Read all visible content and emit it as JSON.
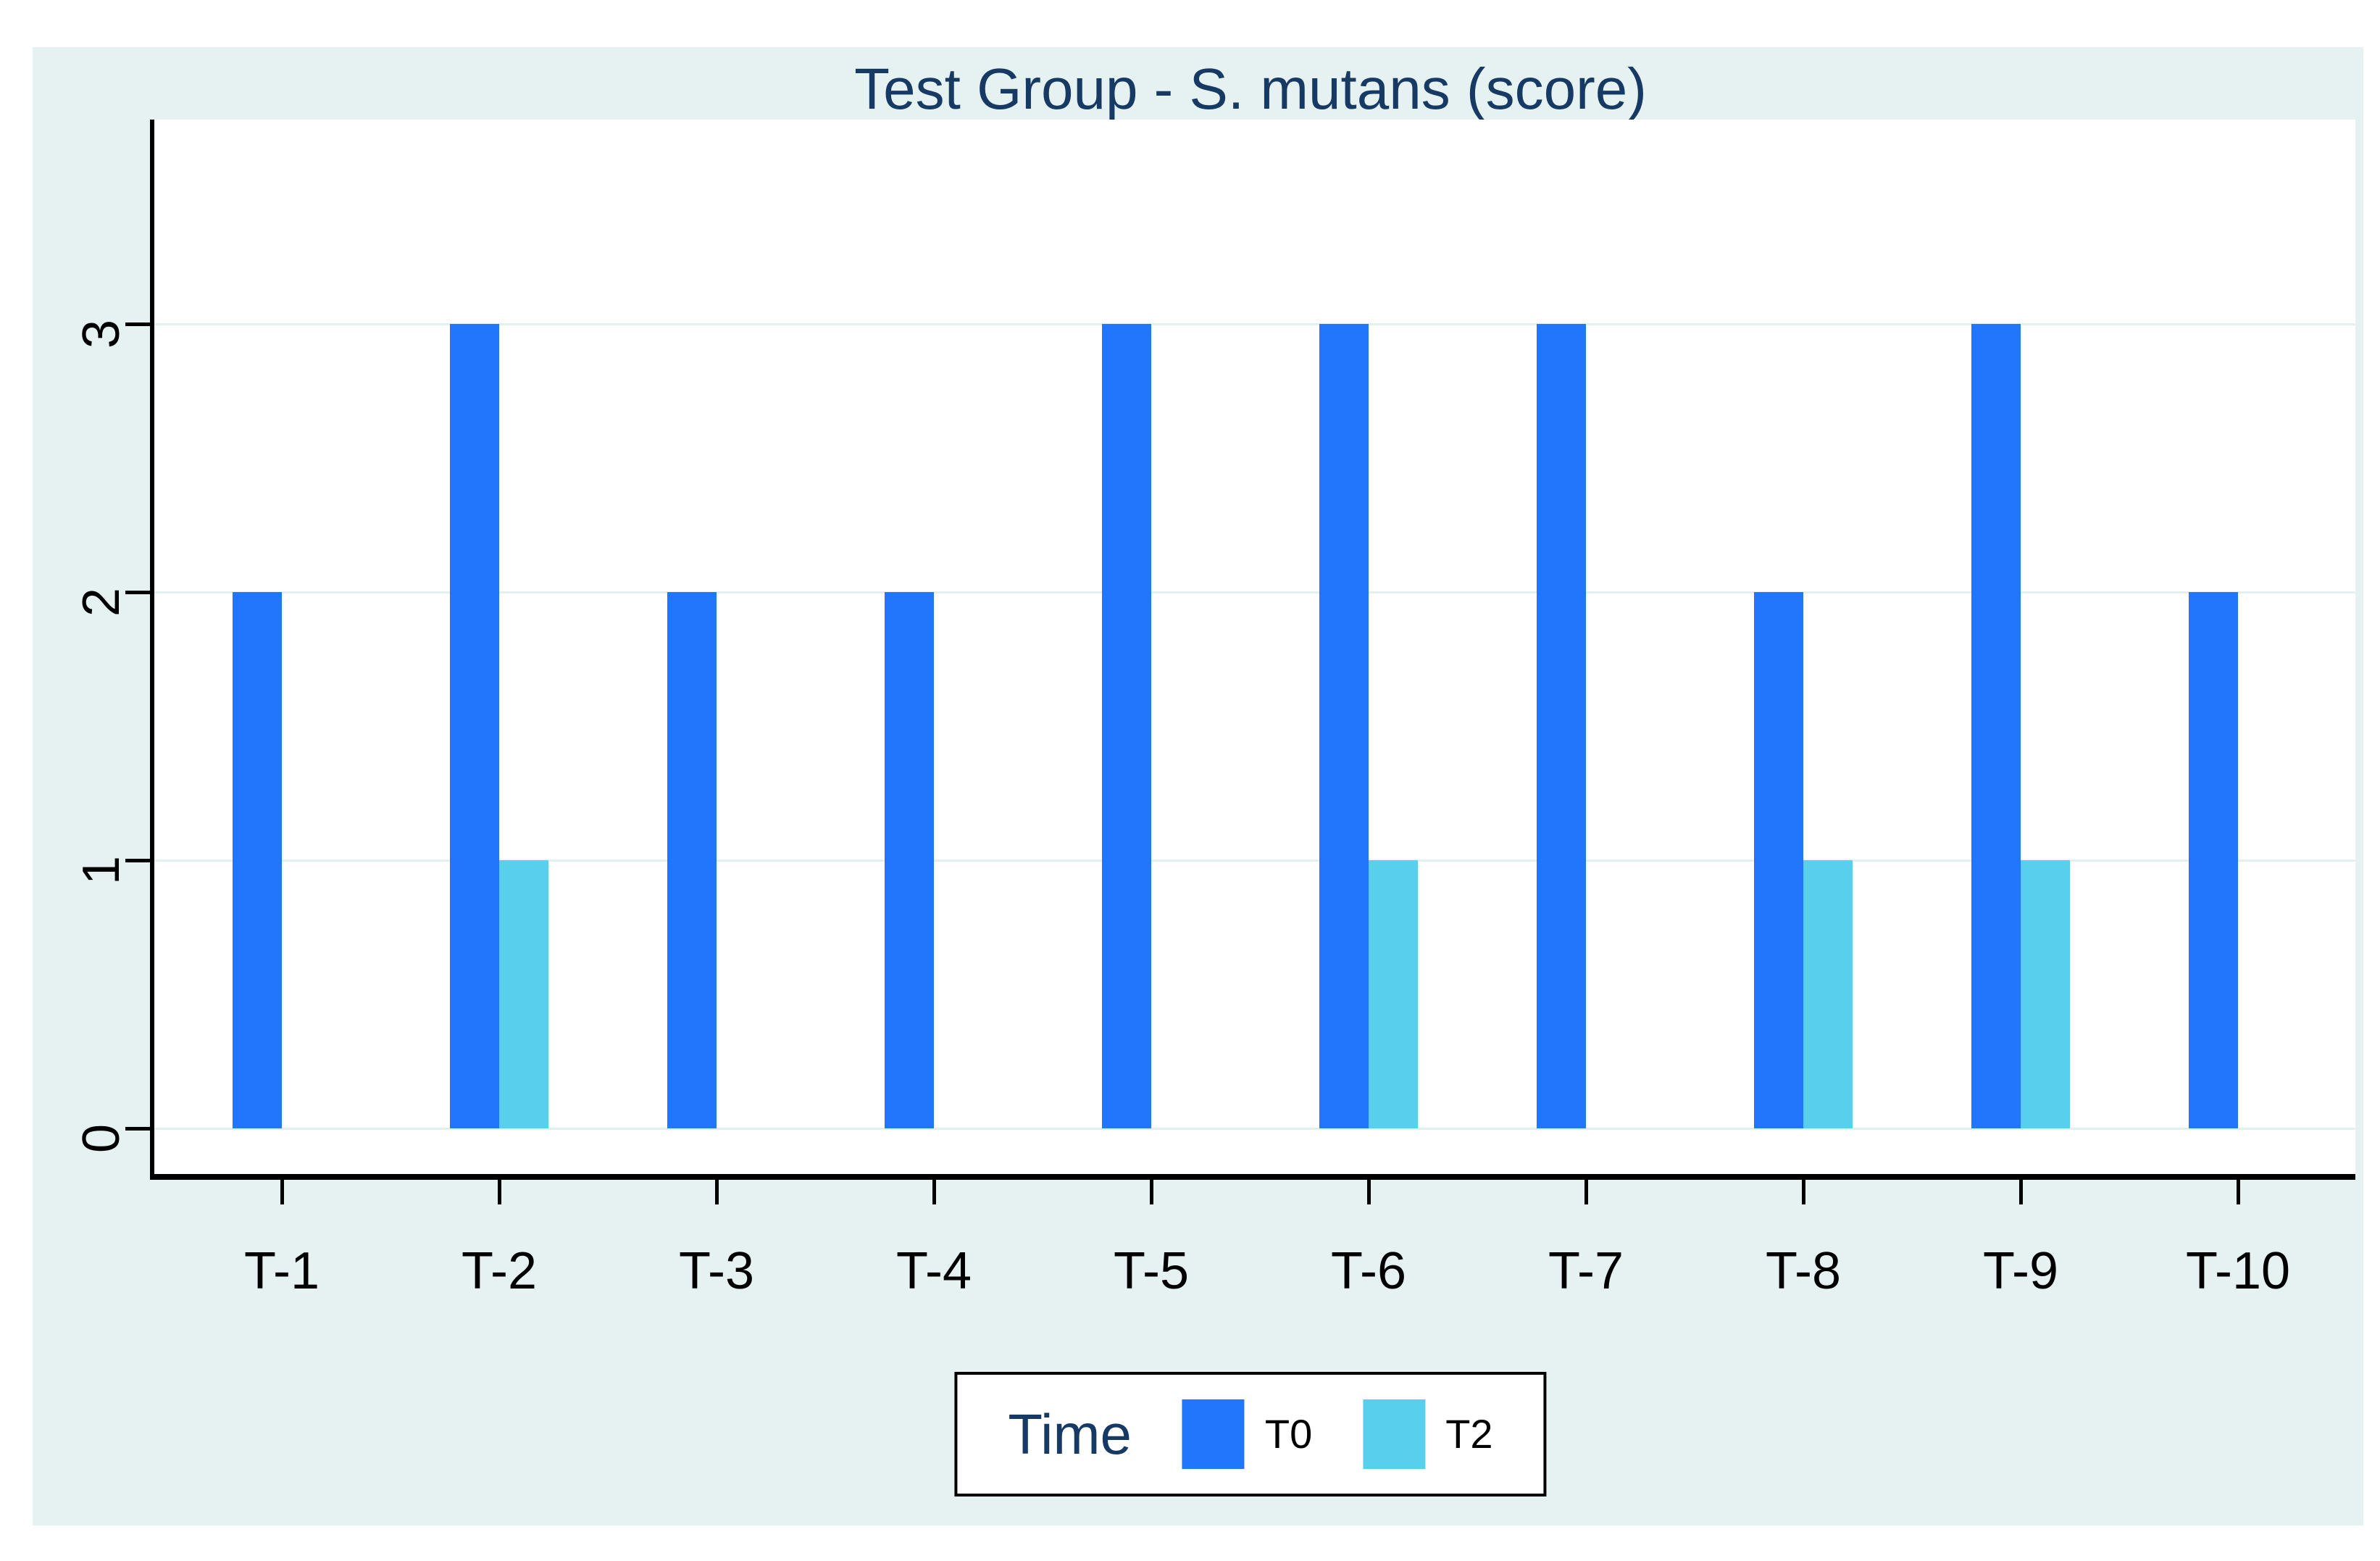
{
  "chart": {
    "title": "Test Group - S. mutans (score)",
    "legend": {
      "title": "Time"
    }
  },
  "chart_data": {
    "type": "bar",
    "title": "Test Group - S. mutans (score)",
    "categories": [
      "T-1",
      "T-2",
      "T-3",
      "T-4",
      "T-5",
      "T-6",
      "T-7",
      "T-8",
      "T-9",
      "T-10"
    ],
    "series": [
      {
        "name": "T0",
        "color": "#2176fb",
        "values": [
          2,
          3,
          2,
          2,
          3,
          3,
          3,
          2,
          3,
          2
        ]
      },
      {
        "name": "T2",
        "color": "#58cfec",
        "values": [
          0,
          1,
          0,
          0,
          0,
          1,
          0,
          1,
          1,
          0
        ]
      }
    ],
    "xlabel": "",
    "ylabel": "",
    "yticks": [
      0,
      1,
      2,
      3
    ],
    "ylim": [
      0,
      3.76
    ],
    "grid": true,
    "bar_layout": "grouped-touching",
    "legend_title": "Time",
    "legend_position": "bottom-center"
  },
  "colors": {
    "canvas_background": "#e6f2f2",
    "plot_background": "#ffffff",
    "gridline": "#e4efef",
    "axis": "#000000",
    "tick_label": "#000000",
    "title_text": "#163a64",
    "legend_title_text": "#163a64",
    "legend_label_text": "#000000",
    "legend_border": "#000000",
    "legend_background": "#ffffff",
    "series_t0": "#2176fb",
    "series_t2": "#58cfec"
  }
}
